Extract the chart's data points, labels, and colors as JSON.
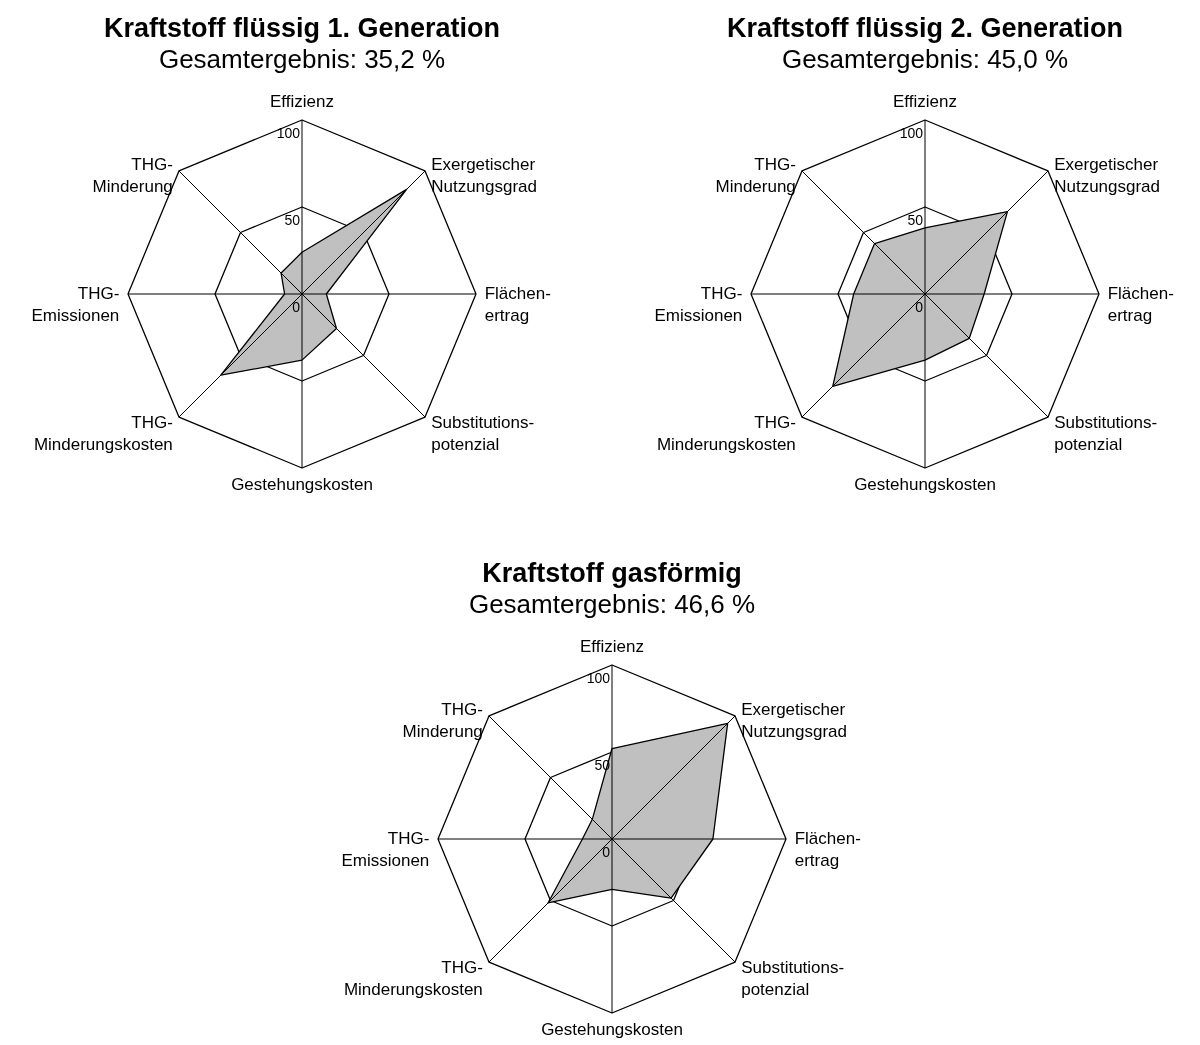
{
  "chart_data": [
    {
      "type": "radar",
      "title": "Kraftstoff flüssig 1. Generation",
      "subtitle": "Gesamtergebnis: 35,2 %",
      "categories": [
        "Effizienz",
        "Exergetischer\nNutzungsgrad",
        "Flächen-\nertrag",
        "Substitutions-\npotenzial",
        "Gestehungskosten",
        "THG-\nMinderungskosten",
        "THG-\nEmissionen",
        "THG-\nMinderung"
      ],
      "series": [
        {
          "color": "#c0c0c0",
          "values": [
            24,
            85,
            14,
            28,
            38,
            66,
            10,
            17
          ]
        }
      ],
      "ylim": [
        0,
        100
      ],
      "yticks": [
        0,
        50,
        100
      ],
      "grid": true
    },
    {
      "type": "radar",
      "title": "Kraftstoff flüssig 2. Generation",
      "subtitle": "Gesamtergebnis: 45,0 %",
      "categories": [
        "Effizienz",
        "Exergetischer\nNutzungsgrad",
        "Flächen-\nertrag",
        "Substitutions-\npotenzial",
        "Gestehungskosten",
        "THG-\nMinderungskosten",
        "THG-\nEmissionen",
        "THG-\nMinderung"
      ],
      "series": [
        {
          "color": "#c0c0c0",
          "values": [
            38,
            67,
            34,
            36,
            38,
            75,
            41,
            41
          ]
        }
      ],
      "ylim": [
        0,
        100
      ],
      "yticks": [
        0,
        50,
        100
      ],
      "grid": true
    },
    {
      "type": "radar",
      "title": "Kraftstoff gasförmig",
      "subtitle": "Gesamtergebnis: 46,6 %",
      "categories": [
        "Effizienz",
        "Exergetischer\nNutzungsgrad",
        "Flächen-\nertrag",
        "Substitutions-\npotenzial",
        "Gestehungskosten",
        "THG-\nMinderungskosten",
        "THG-\nEmissionen",
        "THG-\nMinderung"
      ],
      "series": [
        {
          "color": "#c0c0c0",
          "values": [
            52,
            94,
            58,
            48,
            29,
            52,
            17,
            16
          ]
        }
      ],
      "ylim": [
        0,
        100
      ],
      "yticks": [
        0,
        50,
        100
      ],
      "grid": true
    }
  ]
}
